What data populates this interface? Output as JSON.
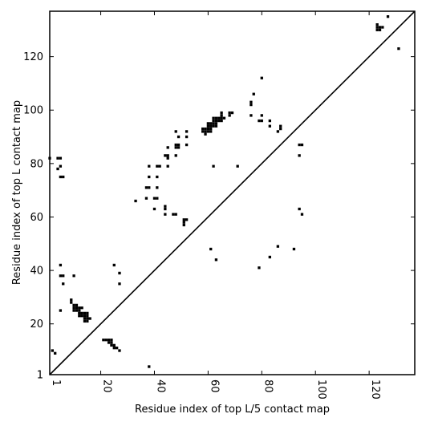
{
  "chart_data": {
    "type": "heatmap",
    "title": "",
    "xlabel": "Residue index of top L/5 contact map",
    "ylabel": "Residue index of top L contact map",
    "xlim": [
      1,
      137
    ],
    "ylim": [
      1,
      137
    ],
    "x_ticks": [
      {
        "value": 1,
        "label": "1"
      },
      {
        "value": 20,
        "label": "20"
      },
      {
        "value": 40,
        "label": "40"
      },
      {
        "value": 60,
        "label": "60"
      },
      {
        "value": 80,
        "label": "80"
      },
      {
        "value": 100,
        "label": "100"
      },
      {
        "value": 120,
        "label": "120"
      }
    ],
    "y_ticks": [
      {
        "value": 1,
        "label": "1"
      },
      {
        "value": 20,
        "label": "20"
      },
      {
        "value": 40,
        "label": "40"
      },
      {
        "value": 60,
        "label": "60"
      },
      {
        "value": 80,
        "label": "80"
      },
      {
        "value": 100,
        "label": "100"
      },
      {
        "value": 120,
        "label": "120"
      }
    ],
    "diagonal_line": true,
    "colors": {
      "contact": "#000000",
      "background": "#ffffff"
    },
    "contacts_upper_left": [
      [
        1,
        82
      ],
      [
        4,
        82
      ],
      [
        5,
        82
      ],
      [
        4,
        78
      ],
      [
        5,
        79
      ],
      [
        5,
        75
      ],
      [
        6,
        75
      ],
      [
        5,
        42
      ],
      [
        5,
        38
      ],
      [
        6,
        38
      ],
      [
        6,
        35
      ],
      [
        10,
        38
      ],
      [
        5,
        25
      ],
      [
        9,
        28
      ],
      [
        9,
        29
      ],
      [
        10,
        27
      ],
      [
        11,
        27
      ],
      [
        10,
        26
      ],
      [
        11,
        26
      ],
      [
        12,
        26
      ],
      [
        13,
        26
      ],
      [
        12,
        25
      ],
      [
        11,
        25
      ],
      [
        10,
        25
      ],
      [
        12,
        24
      ],
      [
        13,
        24
      ],
      [
        14,
        24
      ],
      [
        15,
        24
      ],
      [
        12,
        23
      ],
      [
        13,
        23
      ],
      [
        14,
        23
      ],
      [
        15,
        23
      ],
      [
        14,
        22
      ],
      [
        15,
        22
      ],
      [
        16,
        22
      ],
      [
        14,
        21
      ],
      [
        15,
        21
      ],
      [
        21,
        14
      ],
      [
        22,
        14
      ],
      [
        23,
        14
      ],
      [
        24,
        14
      ],
      [
        23,
        13
      ],
      [
        24,
        13
      ],
      [
        24,
        12
      ],
      [
        25,
        12
      ],
      [
        25,
        11
      ],
      [
        26,
        11
      ],
      [
        27,
        10
      ],
      [
        25,
        42
      ],
      [
        27,
        39
      ],
      [
        27,
        35
      ],
      [
        2,
        10
      ],
      [
        3,
        9
      ],
      [
        38,
        4
      ],
      [
        33,
        66
      ],
      [
        37,
        71
      ],
      [
        38,
        71
      ],
      [
        37,
        67
      ],
      [
        38,
        75
      ],
      [
        38,
        79
      ],
      [
        40,
        63
      ],
      [
        40,
        67
      ],
      [
        41,
        67
      ],
      [
        41,
        71
      ],
      [
        41,
        75
      ],
      [
        41,
        79
      ],
      [
        42,
        79
      ],
      [
        44,
        83
      ],
      [
        45,
        83
      ],
      [
        45,
        82
      ],
      [
        45,
        86
      ],
      [
        45,
        79
      ],
      [
        44,
        64
      ],
      [
        44,
        63
      ],
      [
        44,
        61
      ],
      [
        47,
        61
      ],
      [
        48,
        61
      ],
      [
        48,
        83
      ],
      [
        48,
        86
      ],
      [
        48,
        87
      ],
      [
        49,
        86
      ],
      [
        49,
        87
      ],
      [
        48,
        92
      ],
      [
        49,
        90
      ],
      [
        52,
        90
      ],
      [
        52,
        92
      ],
      [
        52,
        87
      ],
      [
        51,
        59
      ],
      [
        52,
        59
      ],
      [
        51,
        58
      ],
      [
        51,
        57
      ],
      [
        58,
        93
      ],
      [
        59,
        93
      ],
      [
        58,
        92
      ],
      [
        59,
        92
      ],
      [
        59,
        91
      ],
      [
        60,
        92
      ],
      [
        60,
        93
      ],
      [
        61,
        92
      ],
      [
        61,
        93
      ],
      [
        60,
        94
      ],
      [
        61,
        94
      ],
      [
        60,
        95
      ],
      [
        61,
        95
      ],
      [
        62,
        94
      ],
      [
        63,
        94
      ],
      [
        62,
        95
      ],
      [
        63,
        95
      ],
      [
        62,
        96
      ],
      [
        63,
        96
      ],
      [
        62,
        97
      ],
      [
        63,
        97
      ],
      [
        64,
        97
      ],
      [
        65,
        97
      ],
      [
        64,
        96
      ],
      [
        65,
        96
      ],
      [
        65,
        98
      ],
      [
        65,
        99
      ],
      [
        66,
        97
      ],
      [
        68,
        98
      ],
      [
        68,
        99
      ],
      [
        69,
        99
      ],
      [
        62,
        79
      ],
      [
        71,
        79
      ],
      [
        76,
        98
      ],
      [
        76,
        102
      ],
      [
        76,
        103
      ],
      [
        77,
        106
      ],
      [
        79,
        96
      ],
      [
        80,
        96
      ],
      [
        80,
        98
      ],
      [
        80,
        112
      ],
      [
        83,
        96
      ],
      [
        83,
        94
      ],
      [
        86,
        92
      ],
      [
        87,
        94
      ],
      [
        87,
        93
      ],
      [
        123,
        132
      ],
      [
        123,
        131
      ],
      [
        123,
        130
      ],
      [
        124,
        130
      ],
      [
        124,
        131
      ],
      [
        125,
        131
      ],
      [
        127,
        135
      ]
    ],
    "contacts_lower_right": [
      [
        61,
        48
      ],
      [
        63,
        44
      ],
      [
        79,
        41
      ],
      [
        83,
        45
      ],
      [
        86,
        49
      ],
      [
        92,
        48
      ],
      [
        94,
        87
      ],
      [
        95,
        87
      ],
      [
        94,
        83
      ],
      [
        94,
        63
      ],
      [
        95,
        61
      ],
      [
        131,
        123
      ]
    ]
  }
}
